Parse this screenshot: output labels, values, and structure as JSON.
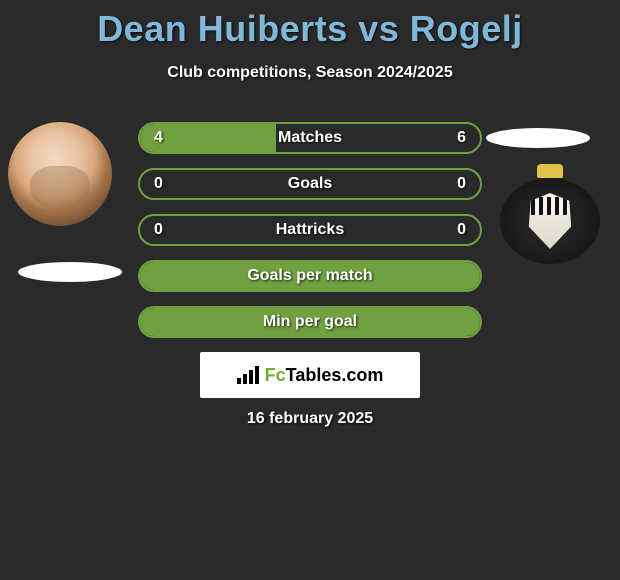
{
  "title": "Dean Huiberts vs Rogelj",
  "subtitle": "Club competitions, Season 2024/2025",
  "date": "16 february 2025",
  "brand": {
    "prefix": "Fc",
    "suffix": "Tables.com"
  },
  "colors": {
    "background": "#2a2a2a",
    "title": "#7fb8d8",
    "text": "#ffffff",
    "pill_border": "#70a040",
    "pill_fill": "#70a040",
    "brand_bg": "#ffffff",
    "brand_accent": "#6fae2f"
  },
  "rows": [
    {
      "label": "Matches",
      "left": "4",
      "right": "6",
      "fill_pct": 40
    },
    {
      "label": "Goals",
      "left": "0",
      "right": "0",
      "fill_pct": 0
    },
    {
      "label": "Hattricks",
      "left": "0",
      "right": "0",
      "fill_pct": 0
    },
    {
      "label": "Goals per match",
      "left": "",
      "right": "",
      "fill_pct": 100
    },
    {
      "label": "Min per goal",
      "left": "",
      "right": "",
      "fill_pct": 100
    }
  ]
}
